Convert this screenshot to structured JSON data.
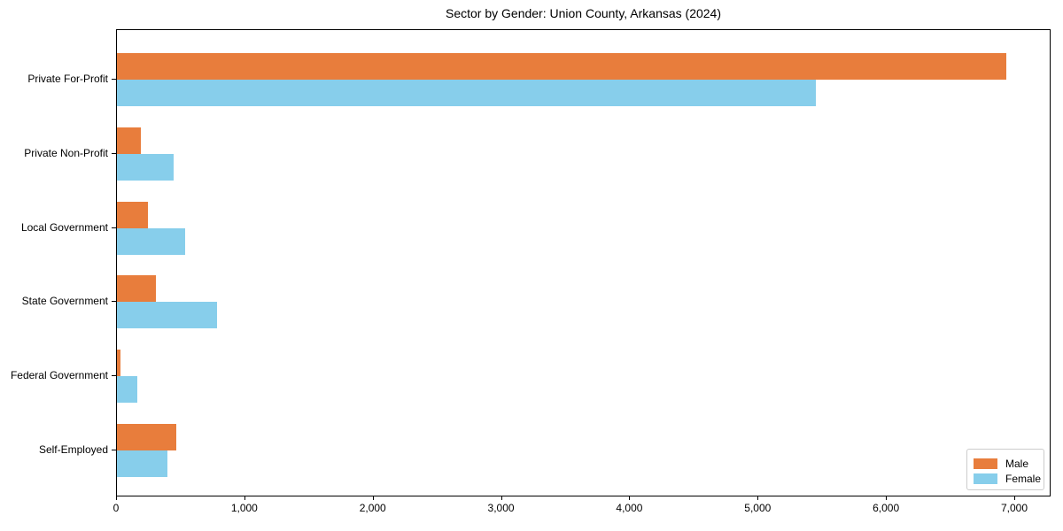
{
  "chart_data": {
    "type": "bar",
    "orientation": "horizontal",
    "title": "Sector by Gender: Union County, Arkansas (2024)",
    "categories": [
      "Private For-Profit",
      "Private Non-Profit",
      "Local Government",
      "State Government",
      "Federal Government",
      "Self-Employed"
    ],
    "series": [
      {
        "name": "Male",
        "color": "#e87d3c",
        "values": [
          6930,
          185,
          245,
          305,
          30,
          460
        ]
      },
      {
        "name": "Female",
        "color": "#87ceeb",
        "values": [
          5445,
          440,
          530,
          780,
          160,
          395
        ]
      }
    ],
    "xlabel": "",
    "ylabel": "",
    "xlim": [
      0,
      7283
    ],
    "xticks": [
      0,
      1000,
      2000,
      3000,
      4000,
      5000,
      6000,
      7000
    ],
    "xtick_labels": [
      "0",
      "1,000",
      "2,000",
      "3,000",
      "4,000",
      "5,000",
      "6,000",
      "7,000"
    ],
    "grid": false,
    "legend_position": "lower right",
    "background_color": "#ffffff",
    "axis_color": "#000000"
  }
}
